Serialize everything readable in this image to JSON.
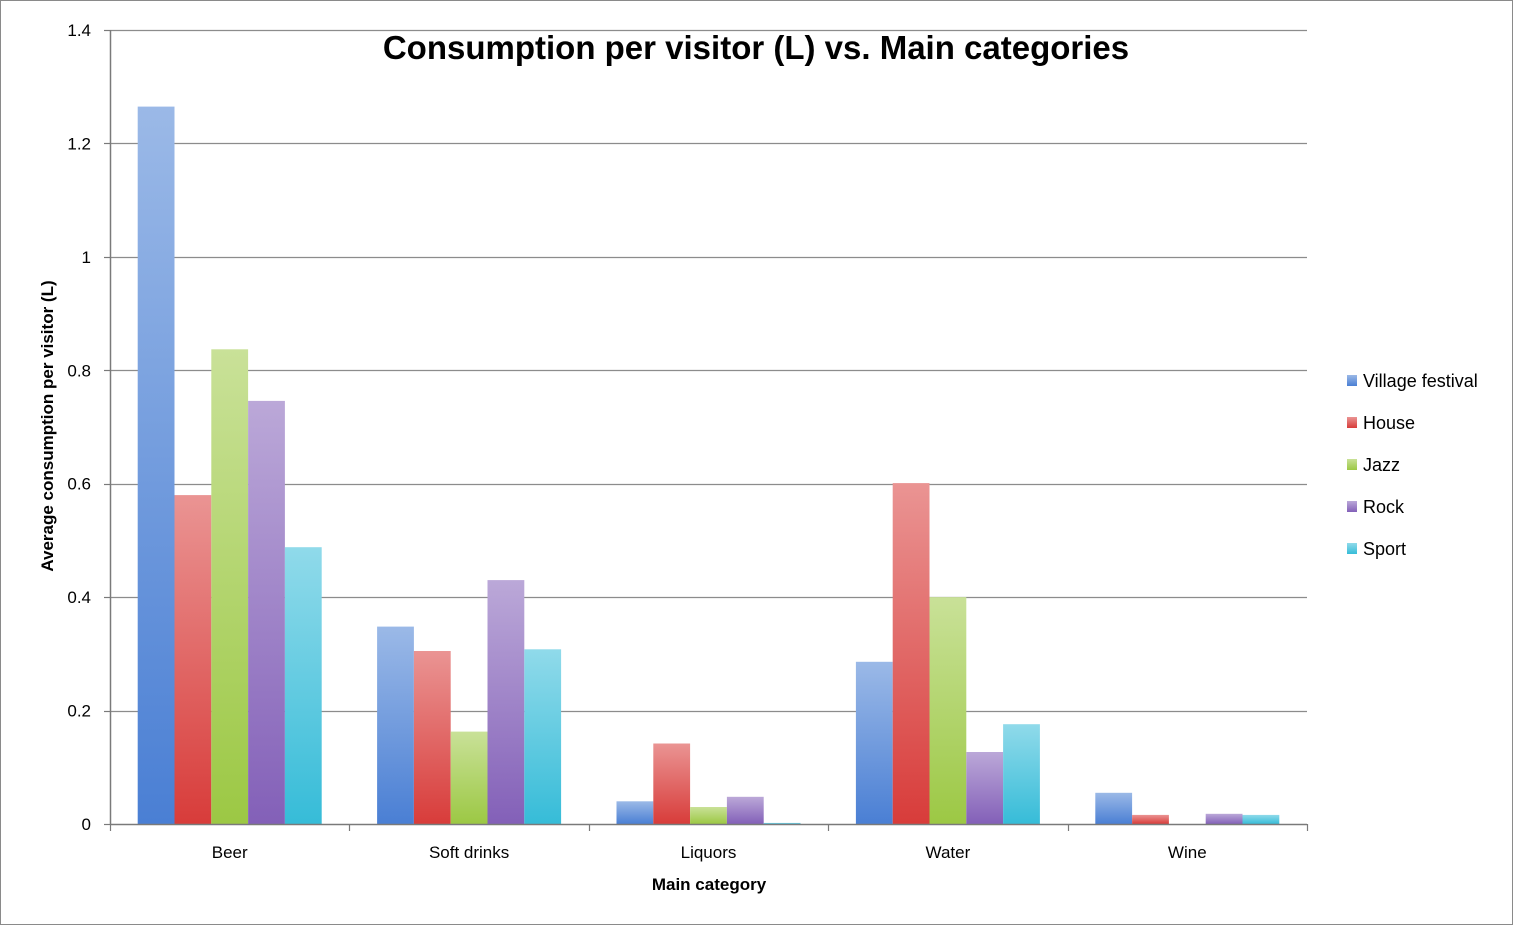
{
  "chart_data": {
    "type": "bar",
    "title": "Consumption per visitor (L) vs. Main categories",
    "xlabel": "Main category",
    "ylabel": "Average consumption per visitor (L)",
    "ylim": [
      0,
      1.4
    ],
    "yticks": [
      0,
      0.2,
      0.4,
      0.6,
      0.8,
      1,
      1.2,
      1.4
    ],
    "ytick_labels": [
      "0",
      "0.2",
      "0.4",
      "0.6",
      "0.8",
      "1",
      "1.2",
      "1.4"
    ],
    "grid": true,
    "legend_position": "right",
    "categories": [
      "Beer",
      "Soft drinks",
      "Liquors",
      "Water",
      "Wine"
    ],
    "series": [
      {
        "name": "Village festival",
        "color": "#4a7fd4",
        "values": [
          1.265,
          0.348,
          0.04,
          0.286,
          0.055
        ]
      },
      {
        "name": "House",
        "color": "#d83c3a",
        "values": [
          0.58,
          0.305,
          0.142,
          0.601,
          0.016
        ]
      },
      {
        "name": "Jazz",
        "color": "#9cc844",
        "values": [
          0.837,
          0.163,
          0.03,
          0.4,
          0.0
        ]
      },
      {
        "name": "Rock",
        "color": "#8360b8",
        "values": [
          0.746,
          0.43,
          0.048,
          0.127,
          0.018
        ]
      },
      {
        "name": "Sport",
        "color": "#36bcd8",
        "values": [
          0.488,
          0.308,
          0.002,
          0.176,
          0.016
        ]
      }
    ]
  }
}
